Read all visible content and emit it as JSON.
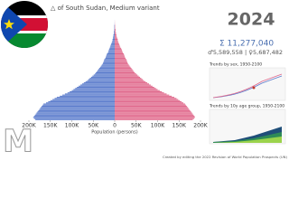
{
  "chart_data": {
    "type": "pyramid",
    "title": "△ of South Sudan, Medium variant",
    "year": "2024",
    "total": "Σ 11,277,040",
    "by_sex": "♂5,589,558 | ♀5,687,482",
    "trend_sex_title": "Trends by sex, 1950-2100",
    "trend_age_title": "Trends by 10y age group, 1950-2100",
    "xlabel": "Population (persons)",
    "credit": "Created by editing the 2022 Revision of World Population Prospects (UN)",
    "watermark": "M",
    "xlim": [
      -200000,
      200000
    ],
    "xticks": [
      {
        "value": -200000,
        "label": "200K"
      },
      {
        "value": -150000,
        "label": "150K"
      },
      {
        "value": -100000,
        "label": "100K"
      },
      {
        "value": -50000,
        "label": "50K"
      },
      0,
      {
        "value": 50000,
        "label": "50K"
      },
      {
        "value": 100000,
        "label": "100K"
      },
      {
        "value": 150000,
        "label": "150K"
      },
      {
        "value": 200000,
        "label": "200K"
      }
    ],
    "series": [
      {
        "color": "#5b7ccc",
        "values": [
          -185000,
          -188000,
          -190000,
          -188000,
          -186000,
          -184000,
          -182000,
          -180000,
          -178000,
          -176000,
          -174000,
          -172000,
          -170000,
          -168000,
          -166000,
          -160000,
          -155000,
          -150000,
          -145000,
          -140000,
          -135000,
          -128000,
          -122000,
          -116000,
          -110000,
          -105000,
          -100000,
          -96000,
          -92000,
          -88000,
          -84000,
          -80000,
          -76000,
          -72000,
          -68000,
          -64000,
          -61000,
          -58000,
          -55000,
          -52000,
          -49000,
          -46000,
          -44000,
          -42000,
          -40000,
          -38000,
          -36000,
          -34000,
          -32000,
          -30000,
          -28000,
          -27000,
          -26000,
          -25000,
          -24000,
          -22000,
          -21000,
          -20000,
          -19000,
          -18000,
          -16000,
          -15000,
          -14000,
          -13000,
          -12000,
          -11000,
          -10000,
          -9000,
          -8000,
          -7000,
          -6000,
          -5000,
          -5000,
          -4000,
          -4000,
          -3000,
          -3000,
          -2000,
          -2000,
          -2000,
          -1000,
          -1000,
          -1000,
          -1000,
          -1000,
          -500,
          -300,
          -200,
          -100,
          -100
        ]
      },
      {
        "color": "#e0698c",
        "values": [
          182000,
          185000,
          187000,
          186000,
          184000,
          182000,
          180000,
          178000,
          176000,
          174000,
          172000,
          170000,
          168000,
          166000,
          164000,
          160000,
          156000,
          152000,
          148000,
          144000,
          139000,
          133000,
          127000,
          121000,
          115000,
          110000,
          105000,
          100000,
          96000,
          92000,
          88000,
          84000,
          80000,
          76000,
          72000,
          68000,
          65000,
          62000,
          59000,
          56000,
          53000,
          50000,
          47000,
          45000,
          43000,
          41000,
          39000,
          37000,
          35000,
          33000,
          31000,
          30000,
          29000,
          28000,
          27000,
          25000,
          24000,
          23000,
          22000,
          21000,
          19000,
          18000,
          17000,
          16000,
          15000,
          13000,
          12000,
          11000,
          10000,
          9000,
          8000,
          7000,
          7000,
          6000,
          5000,
          4000,
          4000,
          3000,
          3000,
          2000,
          2000,
          2000,
          1000,
          1000,
          1000,
          600,
          400,
          300,
          200,
          100
        ]
      }
    ]
  }
}
